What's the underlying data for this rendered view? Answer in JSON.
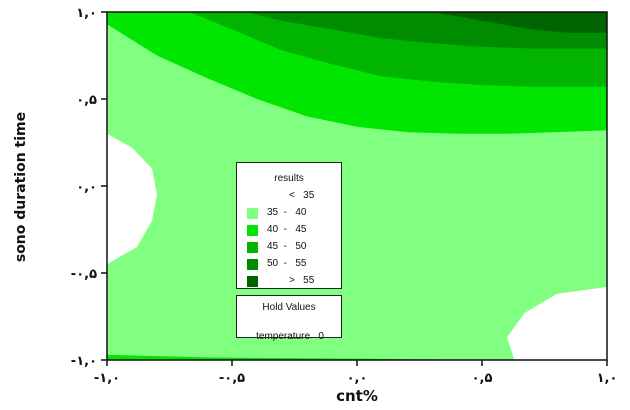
{
  "chart_data": {
    "type": "contour",
    "xlabel": "cnt%",
    "ylabel": "sono duration time",
    "xlim": [
      -1,
      1
    ],
    "ylim": [
      -1,
      1
    ],
    "x_ticks": [
      {
        "value": -1.0,
        "label": "-۱,۰"
      },
      {
        "value": -0.5,
        "label": "-۰,۵"
      },
      {
        "value": 0.0,
        "label": "۰,۰"
      },
      {
        "value": 0.5,
        "label": "۰,۵"
      },
      {
        "value": 1.0,
        "label": "۱,۰"
      }
    ],
    "y_ticks": [
      {
        "value": -1.0,
        "label": "-۱,۰"
      },
      {
        "value": -0.5,
        "label": "-۰,۵"
      },
      {
        "value": 0.0,
        "label": "۰,۰"
      },
      {
        "value": 0.5,
        "label": "۰,۵"
      },
      {
        "value": 1.0,
        "label": "۱,۰"
      }
    ],
    "legend": {
      "title": "results",
      "position": "center",
      "entries": [
        {
          "label": "<   35",
          "color": "#ffffff"
        },
        {
          "label": "35  -   40",
          "color": "#80ff80"
        },
        {
          "label": "40  -   45",
          "color": "#00e600"
        },
        {
          "label": "45  -   50",
          "color": "#00b400"
        },
        {
          "label": "50  -   55",
          "color": "#008c00"
        },
        {
          "label": ">   55",
          "color": "#006400"
        }
      ]
    },
    "hold_values": {
      "title": "Hold Values",
      "rows": [
        {
          "label": "temperature",
          "value": "0"
        }
      ]
    },
    "regions": [
      {
        "level": "< 35",
        "color": "#ffffff",
        "polygon": [
          [
            -1.0,
            0.3
          ],
          [
            -0.9,
            0.22
          ],
          [
            -0.82,
            0.1
          ],
          [
            -0.8,
            -0.05
          ],
          [
            -0.82,
            -0.2
          ],
          [
            -0.88,
            -0.35
          ],
          [
            -1.0,
            -0.45
          ]
        ]
      },
      {
        "level": "< 35",
        "color": "#ffffff",
        "polygon": [
          [
            0.63,
            -1.0
          ],
          [
            0.6,
            -0.87
          ],
          [
            0.67,
            -0.73
          ],
          [
            0.8,
            -0.62
          ],
          [
            1.0,
            -0.58
          ],
          [
            1.0,
            -1.0
          ]
        ]
      },
      {
        "level": "40 - 45",
        "color": "#00e600",
        "polygon": [
          [
            -1.0,
            -0.97
          ],
          [
            -0.6,
            -0.985
          ],
          [
            -0.2,
            -0.99
          ],
          [
            0.2,
            -0.995
          ],
          [
            0.63,
            -1.0
          ],
          [
            -1.0,
            -1.0
          ]
        ]
      },
      {
        "level": "40 - 45",
        "color": "#00e600",
        "polygon": [
          [
            -1.0,
            1.0
          ],
          [
            -1.0,
            0.93
          ],
          [
            -0.8,
            0.75
          ],
          [
            -0.6,
            0.62
          ],
          [
            -0.4,
            0.5
          ],
          [
            -0.2,
            0.4
          ],
          [
            0.0,
            0.34
          ],
          [
            0.2,
            0.31
          ],
          [
            0.4,
            0.3
          ],
          [
            0.6,
            0.3
          ],
          [
            0.8,
            0.31
          ],
          [
            1.0,
            0.32
          ],
          [
            1.0,
            1.0
          ]
        ]
      },
      {
        "level": "45 - 50",
        "color": "#00b400",
        "polygon": [
          [
            -0.67,
            1.0
          ],
          [
            -0.5,
            0.9
          ],
          [
            -0.3,
            0.78
          ],
          [
            -0.1,
            0.7
          ],
          [
            0.1,
            0.63
          ],
          [
            0.3,
            0.6
          ],
          [
            0.5,
            0.58
          ],
          [
            0.7,
            0.57
          ],
          [
            1.0,
            0.57
          ],
          [
            1.0,
            1.0
          ]
        ]
      },
      {
        "level": "50 - 55",
        "color": "#008c00",
        "polygon": [
          [
            -0.45,
            1.0
          ],
          [
            -0.3,
            0.95
          ],
          [
            -0.1,
            0.9
          ],
          [
            0.1,
            0.85
          ],
          [
            0.3,
            0.82
          ],
          [
            0.5,
            0.8
          ],
          [
            0.7,
            0.79
          ],
          [
            1.0,
            0.79
          ],
          [
            1.0,
            1.0
          ]
        ]
      },
      {
        "level": "> 55",
        "color": "#006400",
        "polygon": [
          [
            0.3,
            1.0
          ],
          [
            0.5,
            0.95
          ],
          [
            0.7,
            0.9
          ],
          [
            0.85,
            0.88
          ],
          [
            1.0,
            0.88
          ],
          [
            1.0,
            1.0
          ]
        ]
      }
    ],
    "grid": false
  }
}
